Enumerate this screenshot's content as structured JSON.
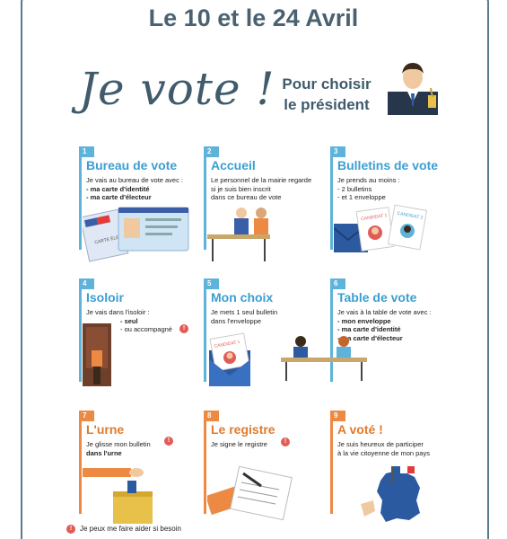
{
  "header": {
    "date": "Le 10 et le 24 Avril",
    "logo_text": "Je vote !",
    "subtitle_line1": "Pour choisir",
    "subtitle_line2": "le président"
  },
  "steps": [
    {
      "number": "1",
      "title": "Bureau de vote",
      "lines": [
        "Je vais au bureau de vote avec :",
        "- ma carte d'identité",
        "- ma carte d'électeur"
      ],
      "card_label": "CARTE ÉLECTORALE"
    },
    {
      "number": "2",
      "title": "Accueil",
      "lines": [
        "Le personnel de la mairie regarde",
        "si je suis bien inscrit",
        "dans ce bureau de vote"
      ]
    },
    {
      "number": "3",
      "title": "Bulletins de vote",
      "lines": [
        "Je prends au moins :",
        "- 2 bulletins",
        "- et 1 enveloppe"
      ],
      "candidat1": "CANDIDAT 1",
      "candidat2": "CANDIDAT 2"
    },
    {
      "number": "4",
      "title": "Isoloir",
      "lines": [
        "Je vais dans l'isoloir :",
        "- seul",
        "- ou accompagné"
      ]
    },
    {
      "number": "5",
      "title": "Mon choix",
      "lines": [
        "Je mets 1 seul bulletin",
        "dans l'enveloppe"
      ],
      "candidat": "CANDIDAT 1"
    },
    {
      "number": "6",
      "title": "Table de vote",
      "lines": [
        "Je vais à la table de vote avec :",
        "- mon enveloppe",
        "- ma carte d'identité",
        "- ma carte d'électeur"
      ]
    },
    {
      "number": "7",
      "title": "L'urne",
      "lines": [
        "Je glisse mon bulletin",
        "dans l'urne"
      ]
    },
    {
      "number": "8",
      "title": "Le registre",
      "lines": [
        "Je signe le registre"
      ]
    },
    {
      "number": "9",
      "title": "A voté !",
      "lines": [
        "Je suis heureux de participer",
        "à la vie citoyenne de mon pays"
      ]
    }
  ],
  "alert_symbol": "!",
  "footnote": "Je peux me faire aider si besoin",
  "colors": {
    "blue": "#5eb3da",
    "orange": "#ec8a44",
    "title_gray": "#4a6170",
    "alert_red": "#e15b57"
  }
}
